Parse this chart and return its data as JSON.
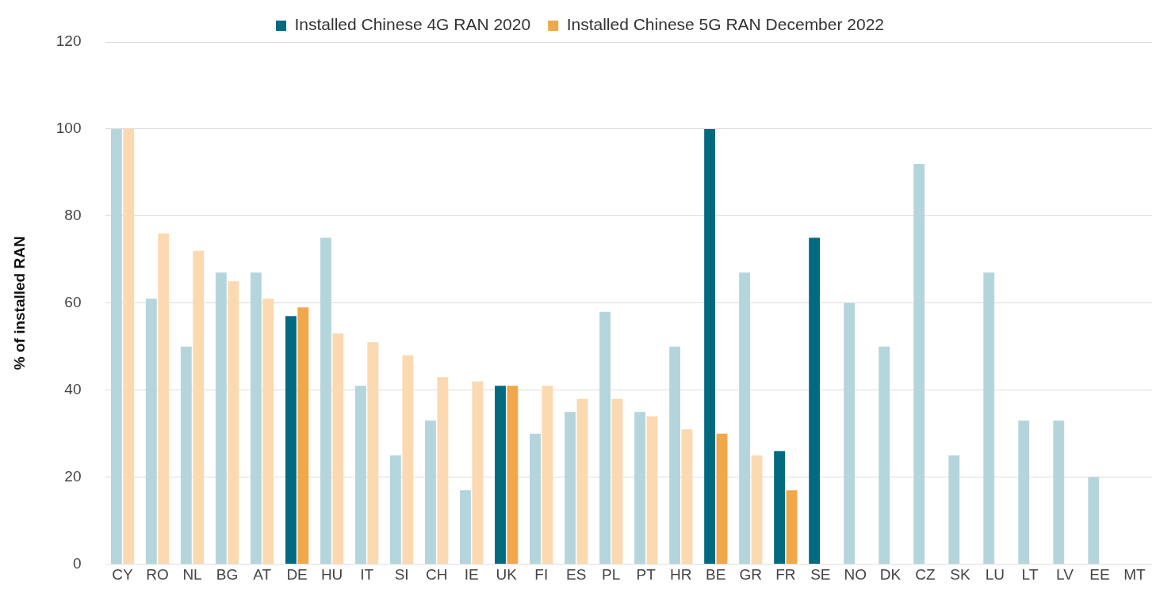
{
  "chart_data": {
    "type": "bar",
    "ylabel": "% of installed RAN",
    "categories": [
      "CY",
      "RO",
      "NL",
      "BG",
      "AT",
      "DE",
      "HU",
      "IT",
      "SI",
      "CH",
      "IE",
      "UK",
      "FI",
      "ES",
      "PL",
      "PT",
      "HR",
      "BE",
      "GR",
      "FR",
      "SE",
      "NO",
      "DK",
      "CZ",
      "SK",
      "LU",
      "LT",
      "LV",
      "EE",
      "MT"
    ],
    "series": [
      {
        "name": "Installed Chinese 4G RAN 2020",
        "color": "#006a80",
        "colors": [
          "#b5d5dc",
          "#b5d5dc",
          "#b5d5dc",
          "#b5d5dc",
          "#b5d5dc",
          "#006a80",
          "#b5d5dc",
          "#b5d5dc",
          "#b5d5dc",
          "#b5d5dc",
          "#b5d5dc",
          "#006a80",
          "#b5d5dc",
          "#b5d5dc",
          "#b5d5dc",
          "#b5d5dc",
          "#b5d5dc",
          "#006a80",
          "#b5d5dc",
          "#006a80",
          "#006a80",
          "#b5d5dc",
          "#b5d5dc",
          "#b5d5dc",
          "#b5d5dc",
          "#b5d5dc",
          "#b5d5dc",
          "#b5d5dc",
          "#b5d5dc",
          "#b5d5dc"
        ],
        "values": [
          100,
          61,
          50,
          67,
          67,
          57,
          75,
          41,
          25,
          33,
          17,
          41,
          30,
          35,
          58,
          35,
          50,
          100,
          67,
          26,
          75,
          60,
          50,
          92,
          25,
          67,
          33,
          33,
          20,
          null
        ]
      },
      {
        "name": "Installed Chinese 5G RAN December 2022",
        "color": "#f0a84a",
        "colors": [
          "#fcd9b0",
          "#fcd9b0",
          "#fcd9b0",
          "#fcd9b0",
          "#fcd9b0",
          "#f0a84a",
          "#fcd9b0",
          "#fcd9b0",
          "#fcd9b0",
          "#fcd9b0",
          "#fcd9b0",
          "#f0a84a",
          "#fcd9b0",
          "#fcd9b0",
          "#fcd9b0",
          "#fcd9b0",
          "#fcd9b0",
          "#f0a84a",
          "#fcd9b0",
          "#f0a84a",
          "#f0a84a",
          "#fcd9b0",
          "#fcd9b0",
          "#fcd9b0",
          "#fcd9b0",
          "#fcd9b0",
          "#fcd9b0",
          "#fcd9b0",
          "#fcd9b0",
          "#fcd9b0"
        ],
        "values": [
          100,
          76,
          72,
          65,
          61,
          59,
          53,
          51,
          48,
          43,
          42,
          41,
          41,
          38,
          38,
          34,
          31,
          30,
          25,
          17,
          null,
          null,
          null,
          null,
          null,
          null,
          null,
          null,
          null,
          null
        ]
      }
    ],
    "ylim": [
      0,
      120
    ],
    "yticks": [
      0,
      20,
      40,
      60,
      80,
      100,
      120
    ],
    "grid": "y",
    "legend": "top"
  }
}
